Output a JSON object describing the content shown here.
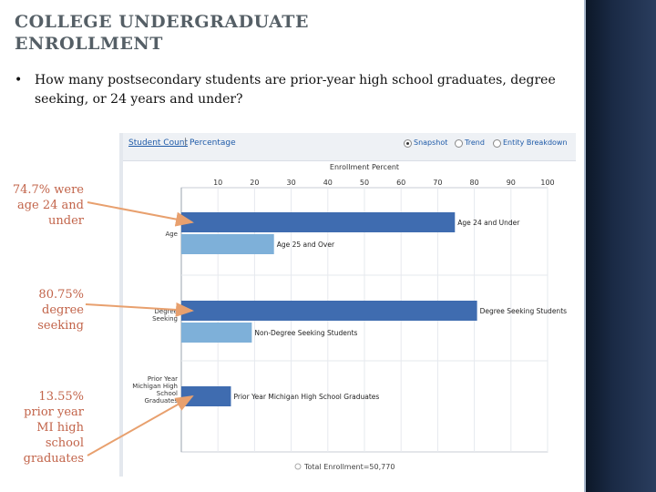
{
  "slide": {
    "title": "COLLEGE UNDERGRADUATE ENROLLMENT",
    "bullet": "How many postsecondary students are prior-year high school graduates, degree seeking, or 24 years and under?"
  },
  "screenshot": {
    "tab_active": "Student Count",
    "tab_separator": "|",
    "tab_other": "Percentage",
    "view_options": [
      "Snapshot",
      "Trend",
      "Entity Breakdown"
    ],
    "selected_view": "Snapshot",
    "footer_text": "Total Enrollment=50,770"
  },
  "callouts": [
    {
      "text": "74.7% were age 24 and under"
    },
    {
      "text": "80.75% degree seeking"
    },
    {
      "text": "13.55% prior year MI high school graduates"
    }
  ],
  "colors": {
    "dark_bar": "#3f6cb0",
    "light_bar": "#7eb0d9",
    "arrow": "#e8a06e",
    "callout_text": "#c2644a"
  },
  "chart_data": {
    "type": "bar",
    "orientation": "horizontal",
    "title": "Enrollment Percent",
    "xlim": [
      0,
      100
    ],
    "ticks": [
      10,
      20,
      30,
      40,
      50,
      60,
      70,
      80,
      90,
      100
    ],
    "grid": true,
    "groups": [
      {
        "category": "Age",
        "bars": [
          {
            "label": "Age 24 and Under",
            "value": 74.7,
            "shade": "dark"
          },
          {
            "label": "Age 25 and Over",
            "value": 25.3,
            "shade": "light"
          }
        ]
      },
      {
        "category": "Degree Seeking",
        "bars": [
          {
            "label": "Degree Seeking Students",
            "value": 80.75,
            "shade": "dark"
          },
          {
            "label": "Non-Degree Seeking Students",
            "value": 19.25,
            "shade": "light"
          }
        ]
      },
      {
        "category": "Prior Year Michigan High School Graduates",
        "bars": [
          {
            "label": "Prior Year Michigan High School Graduates",
            "value": 13.55,
            "shade": "dark"
          }
        ]
      }
    ]
  }
}
